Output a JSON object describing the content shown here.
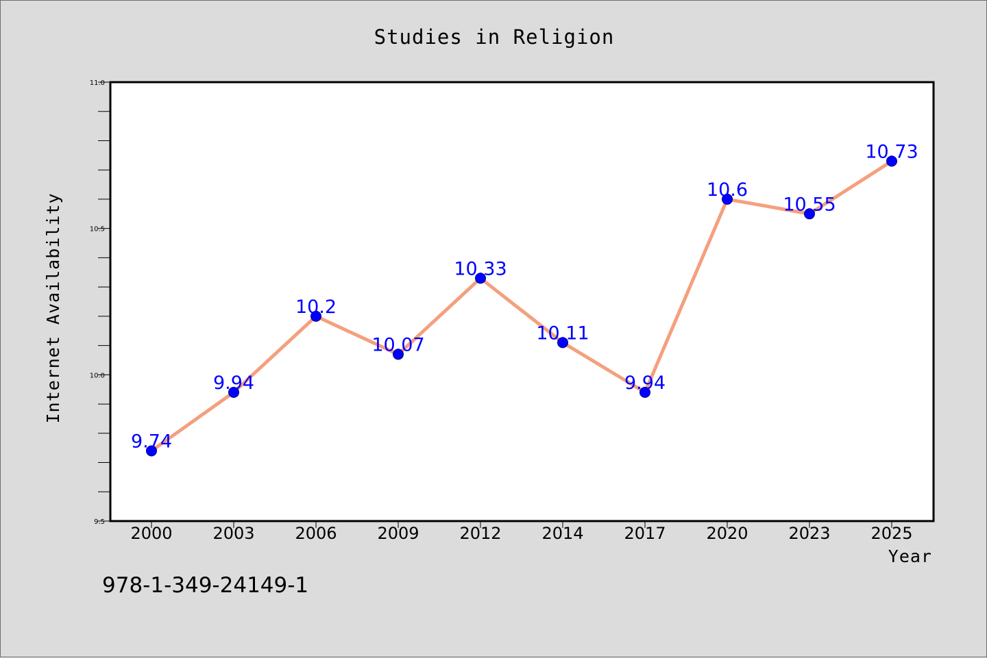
{
  "isbn": "978-1-349-24149-1",
  "chart_data": {
    "type": "line",
    "title": "Studies in Religion",
    "xlabel": "Year",
    "ylabel": "Internet Availability",
    "categories": [
      "2000",
      "2003",
      "2006",
      "2009",
      "2012",
      "2014",
      "2017",
      "2020",
      "2023",
      "2025"
    ],
    "values": [
      9.74,
      9.94,
      10.2,
      10.07,
      10.33,
      10.11,
      9.94,
      10.6,
      10.55,
      10.73
    ],
    "data_labels": [
      "9.74",
      "9.94",
      "10.2",
      "10.07",
      "10.33",
      "10.11",
      "9.94",
      "10.6",
      "10.55",
      "10.73"
    ],
    "ylim": [
      9.5,
      11.0
    ],
    "yticks": [
      "9.5",
      "10.0",
      "10.5",
      "11.0"
    ],
    "y_minor_step": 0.1,
    "grid": false,
    "legend": "none",
    "colors": {
      "background": "#dcdcdc",
      "plot_area": "#ffffff",
      "line": "#f4a07e",
      "marker": "#0000ff",
      "marker_edge": "#000080",
      "data_label": "#0000ff"
    }
  }
}
